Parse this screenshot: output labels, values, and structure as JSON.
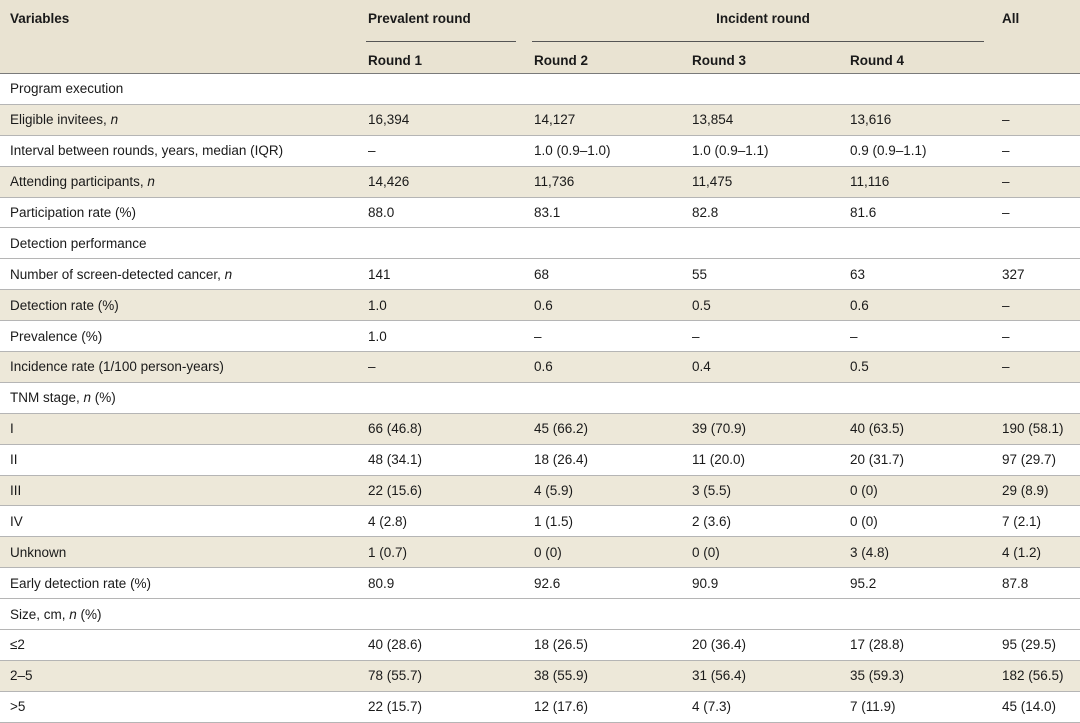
{
  "headers": {
    "variables": "Variables",
    "prevalent_round": "Prevalent round",
    "incident_round": "Incident round",
    "all": "All",
    "round1": "Round 1",
    "round2": "Round 2",
    "round3": "Round 3",
    "round4": "Round 4"
  },
  "rows": {
    "r0": {
      "label": "Program execution"
    },
    "r1": {
      "label": "Eligible invitees, ",
      "italic": "n",
      "suffix": "",
      "v1": "16,394",
      "v2": "14,127",
      "v3": "13,854",
      "v4": "13,616",
      "all": "–"
    },
    "r2": {
      "label": "Interval between rounds, years, median (IQR)",
      "v1": "–",
      "v2": "1.0 (0.9–1.0)",
      "v3": "1.0 (0.9–1.1)",
      "v4": "0.9 (0.9–1.1)",
      "all": "–"
    },
    "r3": {
      "label": "Attending participants, ",
      "italic": "n",
      "suffix": "",
      "v1": "14,426",
      "v2": "11,736",
      "v3": "11,475",
      "v4": "11,116",
      "all": "–"
    },
    "r4": {
      "label": "Participation rate (%)",
      "v1": "88.0",
      "v2": "83.1",
      "v3": "82.8",
      "v4": "81.6",
      "all": "–"
    },
    "r5": {
      "label": "Detection performance"
    },
    "r6": {
      "label": "Number of screen-detected cancer, ",
      "italic": "n",
      "suffix": "",
      "v1": "141",
      "v2": "68",
      "v3": "55",
      "v4": "63",
      "all": "327"
    },
    "r7": {
      "label": "Detection rate (%)",
      "v1": "1.0",
      "v2": "0.6",
      "v3": "0.5",
      "v4": "0.6",
      "all": "–"
    },
    "r8": {
      "label": "Prevalence (%)",
      "v1": "1.0",
      "v2": "–",
      "v3": "–",
      "v4": "–",
      "all": "–"
    },
    "r9": {
      "label": "Incidence rate (1/100 person-years)",
      "v1": "–",
      "v2": "0.6",
      "v3": "0.4",
      "v4": "0.5",
      "all": "–"
    },
    "r10": {
      "label": "TNM stage, ",
      "italic": "n",
      "suffix": " (%)"
    },
    "r11": {
      "label": "I",
      "v1": "66 (46.8)",
      "v2": "45 (66.2)",
      "v3": "39 (70.9)",
      "v4": "40 (63.5)",
      "all": "190 (58.1)"
    },
    "r12": {
      "label": "II",
      "v1": "48 (34.1)",
      "v2": "18 (26.4)",
      "v3": "11 (20.0)",
      "v4": "20 (31.7)",
      "all": "97 (29.7)"
    },
    "r13": {
      "label": "III",
      "v1": "22 (15.6)",
      "v2": "4 (5.9)",
      "v3": "3 (5.5)",
      "v4": "0 (0)",
      "all": "29 (8.9)"
    },
    "r14": {
      "label": "IV",
      "v1": "4 (2.8)",
      "v2": "1 (1.5)",
      "v3": "2 (3.6)",
      "v4": "0 (0)",
      "all": "7 (2.1)"
    },
    "r15": {
      "label": "Unknown",
      "v1": "1 (0.7)",
      "v2": "0 (0)",
      "v3": "0 (0)",
      "v4": "3 (4.8)",
      "all": "4 (1.2)"
    },
    "r16": {
      "label": "Early detection rate (%)",
      "v1": "80.9",
      "v2": "92.6",
      "v3": "90.9",
      "v4": "95.2",
      "all": "87.8"
    },
    "r17": {
      "label": "Size, cm, ",
      "italic": "n",
      "suffix": " (%)"
    },
    "r18": {
      "label": "≤2",
      "v1": "40 (28.6)",
      "v2": "18 (26.5)",
      "v3": "20 (36.4)",
      "v4": "17 (28.8)",
      "all": "95 (29.5)"
    },
    "r19": {
      "label": "2–5",
      "v1": "78 (55.7)",
      "v2": "38 (55.9)",
      "v3": "31 (56.4)",
      "v4": "35 (59.3)",
      "all": "182 (56.5)"
    },
    "r20": {
      "label": ">5",
      "v1": "22 (15.7)",
      "v2": "12 (17.6)",
      "v3": "4 (7.3)",
      "v4": "7 (11.9)",
      "all": "45 (14.0)"
    }
  },
  "colors": {
    "shade": "#ede8d9",
    "header_bg": "#e9e3d2",
    "rule": "#b5b5b5"
  }
}
